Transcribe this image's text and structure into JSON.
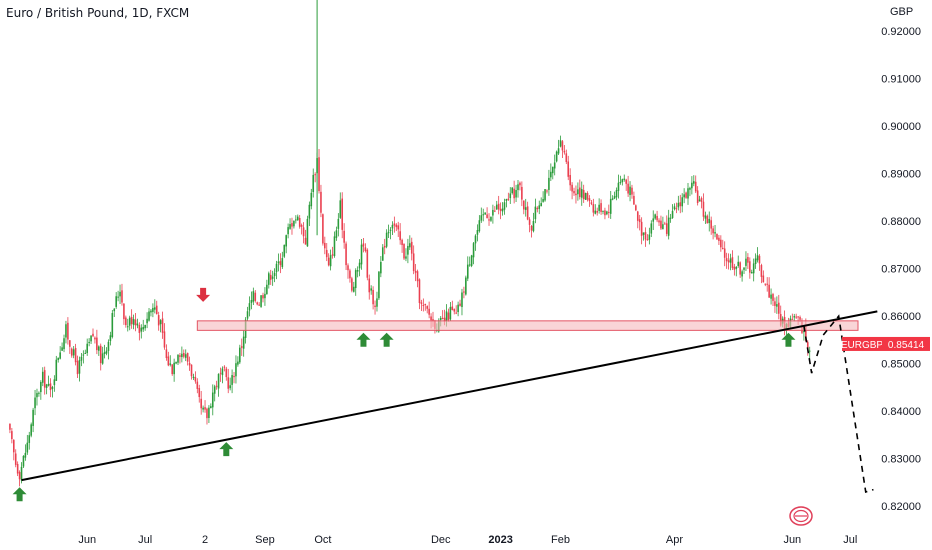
{
  "title": "Euro / British Pound, 1D, FXCM",
  "currency": "GBP",
  "colors": {
    "up": "#2a9b3a",
    "down": "#ea3f4f",
    "zone_fill": "#f5b9bd",
    "zone_stroke": "#e35564",
    "trendline": "#000000",
    "arrow_up": "#2e8b36",
    "arrow_down": "#dc3040",
    "axis_text": "#131722",
    "price_tag": "#f23645"
  },
  "chart_data": {
    "type": "candlestick",
    "symbol": "EURGBP",
    "current_price": 0.85414,
    "price_label": "0.85414",
    "ylim": [
      0.815,
      0.9265
    ],
    "x_range_days": [
      0,
      440
    ],
    "y_ticks": [
      {
        "value": 0.92,
        "label": "0.92000"
      },
      {
        "value": 0.91,
        "label": "0.91000"
      },
      {
        "value": 0.9,
        "label": "0.90000"
      },
      {
        "value": 0.89,
        "label": "0.89000"
      },
      {
        "value": 0.88,
        "label": "0.88000"
      },
      {
        "value": 0.87,
        "label": "0.87000"
      },
      {
        "value": 0.86,
        "label": "0.86000"
      },
      {
        "value": 0.85,
        "label": "0.85000"
      },
      {
        "value": 0.84,
        "label": "0.84000"
      },
      {
        "value": 0.83,
        "label": "0.83000"
      },
      {
        "value": 0.82,
        "label": "0.82000"
      }
    ],
    "x_ticks": [
      {
        "day": 41,
        "label": "Jun",
        "bold": false
      },
      {
        "day": 71,
        "label": "Jul",
        "bold": false
      },
      {
        "day": 102,
        "label": "2",
        "bold": false
      },
      {
        "day": 133,
        "label": "Sep",
        "bold": false
      },
      {
        "day": 163,
        "label": "Oct",
        "bold": false
      },
      {
        "day": 224,
        "label": "Dec",
        "bold": false
      },
      {
        "day": 255,
        "label": "2023",
        "bold": true
      },
      {
        "day": 286,
        "label": "Feb",
        "bold": false
      },
      {
        "day": 345,
        "label": "Apr",
        "bold": false
      },
      {
        "day": 406,
        "label": "Jun",
        "bold": false
      },
      {
        "day": 436,
        "label": "Jul",
        "bold": false
      }
    ],
    "price_path": [
      [
        0,
        0.837
      ],
      [
        4,
        0.829
      ],
      [
        6,
        0.827
      ],
      [
        10,
        0.833
      ],
      [
        14,
        0.842
      ],
      [
        18,
        0.847
      ],
      [
        22,
        0.844
      ],
      [
        26,
        0.852
      ],
      [
        30,
        0.857
      ],
      [
        33,
        0.853
      ],
      [
        36,
        0.849
      ],
      [
        40,
        0.852
      ],
      [
        44,
        0.856
      ],
      [
        48,
        0.851
      ],
      [
        52,
        0.855
      ],
      [
        55,
        0.862
      ],
      [
        58,
        0.866
      ],
      [
        61,
        0.858
      ],
      [
        65,
        0.86
      ],
      [
        69,
        0.857
      ],
      [
        73,
        0.861
      ],
      [
        76,
        0.862
      ],
      [
        79,
        0.858
      ],
      [
        82,
        0.851
      ],
      [
        85,
        0.849
      ],
      [
        88,
        0.853
      ],
      [
        91,
        0.852
      ],
      [
        94,
        0.85
      ],
      [
        97,
        0.845
      ],
      [
        100,
        0.84
      ],
      [
        103,
        0.839
      ],
      [
        106,
        0.844
      ],
      [
        109,
        0.847
      ],
      [
        112,
        0.848
      ],
      [
        115,
        0.845
      ],
      [
        118,
        0.85
      ],
      [
        121,
        0.854
      ],
      [
        124,
        0.861
      ],
      [
        127,
        0.864
      ],
      [
        130,
        0.863
      ],
      [
        133,
        0.866
      ],
      [
        136,
        0.869
      ],
      [
        139,
        0.87
      ],
      [
        142,
        0.873
      ],
      [
        145,
        0.878
      ],
      [
        148,
        0.881
      ],
      [
        151,
        0.88
      ],
      [
        154,
        0.876
      ],
      [
        157,
        0.887
      ],
      [
        160,
        0.893
      ],
      [
        163,
        0.876
      ],
      [
        166,
        0.87
      ],
      [
        169,
        0.876
      ],
      [
        172,
        0.883
      ],
      [
        175,
        0.872
      ],
      [
        178,
        0.865
      ],
      [
        181,
        0.87
      ],
      [
        184,
        0.876
      ],
      [
        187,
        0.866
      ],
      [
        190,
        0.862
      ],
      [
        193,
        0.871
      ],
      [
        196,
        0.878
      ],
      [
        199,
        0.88
      ],
      [
        202,
        0.877
      ],
      [
        205,
        0.873
      ],
      [
        208,
        0.875
      ],
      [
        211,
        0.868
      ],
      [
        214,
        0.862
      ],
      [
        217,
        0.861
      ],
      [
        220,
        0.859
      ],
      [
        223,
        0.858
      ],
      [
        226,
        0.859
      ],
      [
        229,
        0.861
      ],
      [
        232,
        0.86
      ],
      [
        235,
        0.864
      ],
      [
        238,
        0.87
      ],
      [
        241,
        0.876
      ],
      [
        244,
        0.879
      ],
      [
        247,
        0.882
      ],
      [
        250,
        0.881
      ],
      [
        253,
        0.883
      ],
      [
        256,
        0.882
      ],
      [
        259,
        0.885
      ],
      [
        262,
        0.886
      ],
      [
        265,
        0.887
      ],
      [
        268,
        0.882
      ],
      [
        271,
        0.879
      ],
      [
        274,
        0.883
      ],
      [
        277,
        0.886
      ],
      [
        280,
        0.888
      ],
      [
        283,
        0.892
      ],
      [
        286,
        0.896
      ],
      [
        289,
        0.893
      ],
      [
        292,
        0.886
      ],
      [
        295,
        0.887
      ],
      [
        298,
        0.885
      ],
      [
        301,
        0.885
      ],
      [
        304,
        0.882
      ],
      [
        307,
        0.883
      ],
      [
        310,
        0.882
      ],
      [
        313,
        0.885
      ],
      [
        316,
        0.888
      ],
      [
        319,
        0.889
      ],
      [
        322,
        0.886
      ],
      [
        325,
        0.882
      ],
      [
        328,
        0.878
      ],
      [
        331,
        0.877
      ],
      [
        334,
        0.881
      ],
      [
        337,
        0.88
      ],
      [
        340,
        0.878
      ],
      [
        343,
        0.88
      ],
      [
        346,
        0.883
      ],
      [
        349,
        0.885
      ],
      [
        352,
        0.886
      ],
      [
        355,
        0.887
      ],
      [
        358,
        0.884
      ],
      [
        361,
        0.881
      ],
      [
        364,
        0.879
      ],
      [
        367,
        0.876
      ],
      [
        370,
        0.873
      ],
      [
        373,
        0.872
      ],
      [
        376,
        0.871
      ],
      [
        379,
        0.87
      ],
      [
        382,
        0.871
      ],
      [
        385,
        0.87
      ],
      [
        388,
        0.872
      ],
      [
        391,
        0.868
      ],
      [
        394,
        0.865
      ],
      [
        397,
        0.863
      ],
      [
        400,
        0.859
      ],
      [
        403,
        0.858
      ],
      [
        406,
        0.86
      ],
      [
        409,
        0.859
      ],
      [
        412,
        0.857
      ],
      [
        414,
        0.853
      ],
      [
        415,
        0.8541
      ]
    ],
    "spikes": [
      {
        "day": 160,
        "high": 0.93,
        "low": 0.877
      }
    ],
    "resistance_zone": {
      "y_low": 0.857,
      "y_high": 0.859,
      "x_start": 98,
      "x_end": 440
    },
    "trendline": {
      "x1": 7,
      "y1": 0.8255,
      "x2": 450,
      "y2": 0.861
    },
    "projection": [
      [
        412,
        0.858
      ],
      [
        416,
        0.848
      ],
      [
        422,
        0.856
      ],
      [
        430,
        0.86
      ],
      [
        444,
        0.823
      ],
      [
        448,
        0.8235
      ]
    ],
    "markers": [
      {
        "type": "up",
        "day": 6,
        "price": 0.824
      },
      {
        "type": "down",
        "day": 101,
        "price": 0.863
      },
      {
        "type": "up",
        "day": 113,
        "price": 0.8335
      },
      {
        "type": "up",
        "day": 184,
        "price": 0.8565
      },
      {
        "type": "up",
        "day": 196,
        "price": 0.8565
      },
      {
        "type": "up",
        "day": 404,
        "price": 0.8565
      }
    ]
  }
}
